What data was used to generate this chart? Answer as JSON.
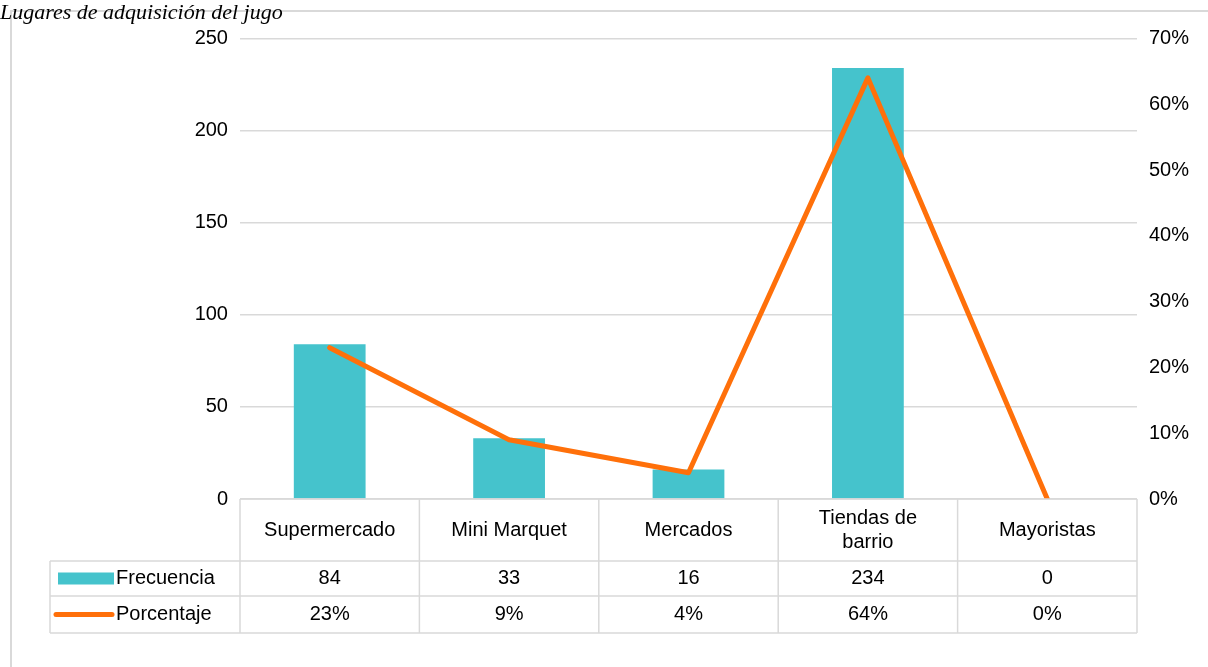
{
  "chart_data": {
    "type": "bar",
    "title": "Lugares de adquisición del jugo",
    "categories": [
      "Supermercado",
      "Mini Marquet",
      "Mercados",
      "Tiendas de barrio",
      "Mayoristas"
    ],
    "series": [
      {
        "name": "Frecuencia",
        "color": "#45c3cc",
        "values": [
          84,
          33,
          16,
          234,
          0
        ],
        "value_labels": [
          "84",
          "33",
          "16",
          "234",
          "0"
        ]
      },
      {
        "name": "Porcentaje",
        "type": "line",
        "axis": "y2",
        "color": "#ff700a",
        "values": [
          23,
          9,
          4,
          64,
          0
        ],
        "value_labels": [
          "23%",
          "9%",
          "4%",
          "64%",
          "0%"
        ],
        "marker": "none"
      }
    ],
    "ylim": [
      0,
      250
    ],
    "yticks": [
      0,
      50,
      100,
      150,
      200,
      250
    ],
    "y2lim": [
      0,
      70
    ],
    "y2ticks": [
      {
        "value": 0,
        "label": "0%"
      },
      {
        "value": 10,
        "label": "10%"
      },
      {
        "value": 20,
        "label": "20%"
      },
      {
        "value": 30,
        "label": "30%"
      },
      {
        "value": 40,
        "label": "40%"
      },
      {
        "value": 50,
        "label": "50%"
      },
      {
        "value": 60,
        "label": "60%"
      },
      {
        "value": 70,
        "label": "70%"
      }
    ],
    "grid": "y",
    "legend": "bottom"
  }
}
